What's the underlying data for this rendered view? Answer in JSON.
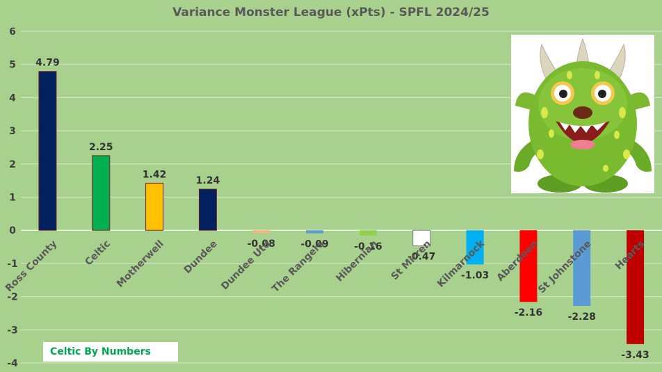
{
  "chart_data": {
    "type": "bar",
    "title": "Variance Monster League (xPts) - SPFL 2024/25",
    "categories": [
      "Ross County",
      "Celtic",
      "Motherwell",
      "Dundee",
      "Dundee Utd",
      "The Rangers",
      "Hibernian",
      "St Mirren",
      "Kilmarnock",
      "Aberdeen",
      "St Johnstone",
      "Hearts"
    ],
    "values": [
      4.79,
      2.25,
      1.42,
      1.24,
      -0.08,
      -0.09,
      -0.16,
      -0.47,
      -1.03,
      -2.16,
      -2.28,
      -3.43
    ],
    "labels": [
      "4.79",
      "2.25",
      "1.42",
      "1.24",
      "-0.08",
      "-0.09",
      "-0.16",
      "-0.47",
      "-1.03",
      "-2.16",
      "-2.28",
      "-3.43"
    ],
    "colors": [
      "#002060",
      "#00b050",
      "#ffc000",
      "#002060",
      "#f4b183",
      "#5b9bd5",
      "#92d050",
      "#ffffff",
      "#00b0f0",
      "#ff0000",
      "#5b9bd5",
      "#c00000"
    ],
    "ylim": [
      -4,
      6
    ],
    "yticks": [
      -4,
      -3,
      -2,
      -1,
      0,
      1,
      2,
      3,
      4,
      5,
      6
    ],
    "xlabel": "",
    "ylabel": "",
    "grid": true,
    "legend": "none"
  },
  "credit": "Celtic By Numbers",
  "image_icon": "monster-icon"
}
